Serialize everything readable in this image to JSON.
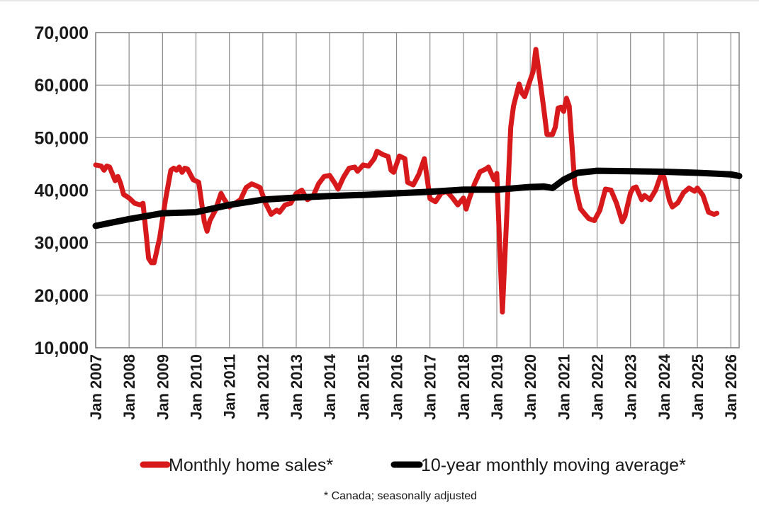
{
  "chart_data": {
    "type": "line",
    "x_axis": {
      "type": "time",
      "start": "2007-01",
      "end": "2026-04"
    },
    "ylim": [
      10000,
      70000
    ],
    "y_ticks": [
      10000,
      20000,
      30000,
      40000,
      50000,
      60000,
      70000
    ],
    "y_tick_labels": [
      "10,000",
      "20,000",
      "30,000",
      "40,000",
      "50,000",
      "60,000",
      "70,000"
    ],
    "x_ticks": [
      "2007-01",
      "2008-01",
      "2009-01",
      "2010-01",
      "2011-01",
      "2012-01",
      "2013-01",
      "2014-01",
      "2015-01",
      "2016-01",
      "2017-01",
      "2018-01",
      "2019-01",
      "2020-01",
      "2021-01",
      "2022-01",
      "2023-01",
      "2024-01",
      "2025-01",
      "2026-01"
    ],
    "x_tick_labels": [
      "Jan 2007",
      "Jan 2008",
      "Jan 2009",
      "Jan 2010",
      "Jan 2011",
      "Jan 2012",
      "Jan 2013",
      "Jan 2014",
      "Jan 2015",
      "Jan 2016",
      "Jan 2017",
      "Jan 2018",
      "Jan 2019",
      "Jan 2020",
      "Jan 2021",
      "Jan 2022",
      "Jan 2023",
      "Jan 2024",
      "Jan 2025",
      "Jan 2026"
    ],
    "grid": true,
    "legend_position": "bottom",
    "note": "* Canada; seasonally adjusted",
    "series": [
      {
        "name": "Monthly home sales*",
        "color": "#d7191c",
        "points": [
          [
            "2007-01",
            44800
          ],
          [
            "2007-03",
            44600
          ],
          [
            "2007-04",
            43800
          ],
          [
            "2007-05",
            44600
          ],
          [
            "2007-06",
            44400
          ],
          [
            "2007-08",
            41800
          ],
          [
            "2007-09",
            42600
          ],
          [
            "2007-10",
            41200
          ],
          [
            "2007-11",
            39200
          ],
          [
            "2008-01",
            38500
          ],
          [
            "2008-03",
            37500
          ],
          [
            "2008-05",
            37200
          ],
          [
            "2008-06",
            37500
          ],
          [
            "2008-08",
            27000
          ],
          [
            "2008-09",
            26200
          ],
          [
            "2008-10",
            26200
          ],
          [
            "2008-12",
            31000
          ],
          [
            "2009-02",
            38000
          ],
          [
            "2009-04",
            43800
          ],
          [
            "2009-05",
            44200
          ],
          [
            "2009-06",
            43800
          ],
          [
            "2009-07",
            44400
          ],
          [
            "2009-08",
            43400
          ],
          [
            "2009-09",
            44200
          ],
          [
            "2009-10",
            44000
          ],
          [
            "2009-12",
            42000
          ],
          [
            "2010-02",
            41500
          ],
          [
            "2010-04",
            34000
          ],
          [
            "2010-05",
            32200
          ],
          [
            "2010-06",
            34200
          ],
          [
            "2010-08",
            36200
          ],
          [
            "2010-10",
            39400
          ],
          [
            "2010-11",
            38400
          ],
          [
            "2011-01",
            36800
          ],
          [
            "2011-03",
            37500
          ],
          [
            "2011-05",
            38200
          ],
          [
            "2011-07",
            40500
          ],
          [
            "2011-09",
            41200
          ],
          [
            "2011-10",
            41000
          ],
          [
            "2011-12",
            40500
          ],
          [
            "2012-02",
            37500
          ],
          [
            "2012-04",
            35400
          ],
          [
            "2012-06",
            36200
          ],
          [
            "2012-07",
            35800
          ],
          [
            "2012-09",
            37200
          ],
          [
            "2012-11",
            37500
          ],
          [
            "2013-01",
            39400
          ],
          [
            "2013-03",
            40000
          ],
          [
            "2013-05",
            38200
          ],
          [
            "2013-07",
            38800
          ],
          [
            "2013-09",
            41200
          ],
          [
            "2013-11",
            42600
          ],
          [
            "2014-01",
            42800
          ],
          [
            "2014-03",
            41200
          ],
          [
            "2014-04",
            40200
          ],
          [
            "2014-06",
            42500
          ],
          [
            "2014-08",
            44200
          ],
          [
            "2014-10",
            44400
          ],
          [
            "2014-11",
            43600
          ],
          [
            "2015-01",
            44800
          ],
          [
            "2015-03",
            44600
          ],
          [
            "2015-05",
            46000
          ],
          [
            "2015-06",
            47400
          ],
          [
            "2015-08",
            46800
          ],
          [
            "2015-10",
            46400
          ],
          [
            "2015-11",
            43800
          ],
          [
            "2015-12",
            43400
          ],
          [
            "2016-02",
            46500
          ],
          [
            "2016-04",
            46000
          ],
          [
            "2016-05",
            41500
          ],
          [
            "2016-07",
            41000
          ],
          [
            "2016-09",
            43000
          ],
          [
            "2016-11",
            46000
          ],
          [
            "2017-01",
            38400
          ],
          [
            "2017-03",
            37800
          ],
          [
            "2017-05",
            39400
          ],
          [
            "2017-07",
            39800
          ],
          [
            "2017-09",
            38600
          ],
          [
            "2017-11",
            37200
          ],
          [
            "2018-01",
            38500
          ],
          [
            "2018-02",
            36400
          ],
          [
            "2018-03",
            38200
          ],
          [
            "2018-05",
            41200
          ],
          [
            "2018-07",
            43500
          ],
          [
            "2018-09",
            44000
          ],
          [
            "2018-10",
            44400
          ],
          [
            "2018-12",
            42000
          ],
          [
            "2019-01",
            43200
          ],
          [
            "2019-03",
            16800
          ],
          [
            "2019-05",
            40000
          ],
          [
            "2019-06",
            52000
          ],
          [
            "2019-07",
            56000
          ],
          [
            "2019-09",
            60200
          ],
          [
            "2019-10",
            58500
          ],
          [
            "2019-11",
            57800
          ],
          [
            "2020-01",
            61000
          ],
          [
            "2020-02",
            62500
          ],
          [
            "2020-03",
            66800
          ],
          [
            "2020-04",
            63000
          ],
          [
            "2020-06",
            55000
          ],
          [
            "2020-07",
            50600
          ],
          [
            "2020-09",
            50600
          ],
          [
            "2020-10",
            52000
          ],
          [
            "2020-11",
            55600
          ],
          [
            "2020-12",
            55800
          ],
          [
            "2021-01",
            55000
          ],
          [
            "2021-02",
            57500
          ],
          [
            "2021-03",
            56000
          ],
          [
            "2021-05",
            41000
          ],
          [
            "2021-07",
            36500
          ],
          [
            "2021-09",
            35200
          ],
          [
            "2021-10",
            34600
          ],
          [
            "2021-12",
            34200
          ],
          [
            "2022-02",
            36200
          ],
          [
            "2022-04",
            40200
          ],
          [
            "2022-06",
            40000
          ],
          [
            "2022-08",
            37500
          ],
          [
            "2022-10",
            34000
          ],
          [
            "2022-11",
            35000
          ],
          [
            "2023-01",
            39500
          ],
          [
            "2023-02",
            40400
          ],
          [
            "2023-03",
            40600
          ],
          [
            "2023-05",
            38200
          ],
          [
            "2023-06",
            39000
          ],
          [
            "2023-08",
            38200
          ],
          [
            "2023-10",
            40000
          ],
          [
            "2023-12",
            43000
          ],
          [
            "2024-01",
            42500
          ],
          [
            "2024-03",
            38000
          ],
          [
            "2024-04",
            36800
          ],
          [
            "2024-06",
            37600
          ],
          [
            "2024-08",
            39500
          ],
          [
            "2024-10",
            40400
          ],
          [
            "2024-12",
            39800
          ],
          [
            "2025-01",
            40400
          ],
          [
            "2025-03",
            39000
          ],
          [
            "2025-05",
            35800
          ],
          [
            "2025-07",
            35400
          ],
          [
            "2025-08",
            35600
          ]
        ]
      },
      {
        "name": "10-year monthly moving average*",
        "color": "#000000",
        "points": [
          [
            "2007-01",
            33200
          ],
          [
            "2008-01",
            34500
          ],
          [
            "2009-01",
            35600
          ],
          [
            "2010-01",
            35800
          ],
          [
            "2011-01",
            37200
          ],
          [
            "2012-01",
            38200
          ],
          [
            "2013-01",
            38600
          ],
          [
            "2014-01",
            38900
          ],
          [
            "2015-01",
            39100
          ],
          [
            "2016-01",
            39400
          ],
          [
            "2017-01",
            39700
          ],
          [
            "2018-01",
            40100
          ],
          [
            "2019-01",
            40100
          ],
          [
            "2020-01",
            40600
          ],
          [
            "2020-06",
            40700
          ],
          [
            "2020-09",
            40400
          ],
          [
            "2021-01",
            42000
          ],
          [
            "2021-06",
            43300
          ],
          [
            "2022-01",
            43700
          ],
          [
            "2023-01",
            43600
          ],
          [
            "2024-01",
            43500
          ],
          [
            "2025-01",
            43300
          ],
          [
            "2026-01",
            43000
          ],
          [
            "2026-04",
            42700
          ]
        ]
      }
    ]
  }
}
